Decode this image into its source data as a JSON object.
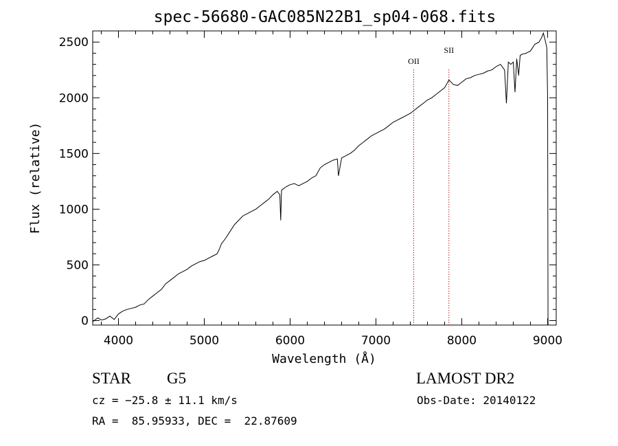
{
  "chart_data": {
    "type": "line",
    "title": "spec-56680-GAC085N22B1_sp04-068.fits",
    "xlabel": "Wavelength (Å)",
    "ylabel": "Flux (relative)",
    "xlim": [
      3700,
      9100
    ],
    "ylim": [
      -40,
      2600
    ],
    "xticks": [
      4000,
      5000,
      6000,
      7000,
      8000,
      9000
    ],
    "yticks": [
      0,
      500,
      1000,
      1500,
      2000,
      2500
    ],
    "grid": false,
    "legend": "none",
    "colors": {
      "spectrum": "#000000",
      "line_marker": "#b22222"
    },
    "line_markers": [
      {
        "label": "OII",
        "x": 7440
      },
      {
        "label": "SII",
        "x": 7850
      }
    ],
    "series": [
      {
        "x": [
          3700,
          3760,
          3800,
          3850,
          3900,
          3950,
          4000,
          4050,
          4100,
          4150,
          4200,
          4250,
          4300,
          4350,
          4400,
          4450,
          4500,
          4550,
          4600,
          4650,
          4700,
          4750,
          4800,
          4850,
          4900,
          4950,
          5000,
          5050,
          5100,
          5150,
          5180,
          5200,
          5250,
          5300,
          5350,
          5400,
          5450,
          5500,
          5550,
          5600,
          5650,
          5700,
          5750,
          5800,
          5850,
          5880,
          5890,
          5900,
          5950,
          6000,
          6050,
          6100,
          6150,
          6200,
          6250,
          6300,
          6350,
          6400,
          6450,
          6500,
          6550,
          6563,
          6600,
          6650,
          6700,
          6750,
          6800,
          6850,
          6900,
          6950,
          7000,
          7050,
          7100,
          7150,
          7200,
          7250,
          7300,
          7350,
          7400,
          7450,
          7500,
          7550,
          7600,
          7650,
          7700,
          7750,
          7800,
          7850,
          7900,
          7950,
          8000,
          8050,
          8100,
          8150,
          8200,
          8250,
          8300,
          8350,
          8400,
          8450,
          8498,
          8520,
          8542,
          8570,
          8600,
          8620,
          8640,
          8662,
          8680,
          8700,
          8750,
          8800,
          8850,
          8900,
          8930,
          8950,
          8970,
          8990,
          9000,
          9005
        ],
        "y": [
          -10,
          25,
          5,
          15,
          40,
          10,
          60,
          85,
          100,
          110,
          120,
          140,
          150,
          190,
          220,
          250,
          280,
          330,
          360,
          390,
          420,
          440,
          460,
          490,
          510,
          530,
          540,
          560,
          580,
          600,
          650,
          690,
          740,
          800,
          860,
          900,
          940,
          960,
          980,
          1000,
          1030,
          1060,
          1090,
          1130,
          1160,
          1130,
          900,
          1170,
          1200,
          1220,
          1230,
          1210,
          1230,
          1250,
          1280,
          1300,
          1370,
          1400,
          1420,
          1440,
          1450,
          1300,
          1460,
          1480,
          1500,
          1530,
          1570,
          1600,
          1630,
          1660,
          1680,
          1700,
          1720,
          1750,
          1780,
          1800,
          1820,
          1840,
          1860,
          1890,
          1920,
          1950,
          1980,
          2000,
          2030,
          2060,
          2090,
          2160,
          2120,
          2110,
          2140,
          2170,
          2180,
          2200,
          2210,
          2220,
          2240,
          2250,
          2280,
          2300,
          2250,
          1950,
          2320,
          2300,
          2320,
          2050,
          2350,
          2200,
          2380,
          2390,
          2400,
          2420,
          2480,
          2500,
          2540,
          2580,
          2520,
          2450,
          2000,
          -40
        ]
      }
    ]
  },
  "footer": {
    "object_class": "STAR",
    "subclass": "G5",
    "survey": "LAMOST DR2",
    "cz": "cz = −25.8 ± 11.1 km/s",
    "obs_date": "Obs-Date: 20140122",
    "coords": "RA =  85.95933, DEC =  22.87609"
  }
}
